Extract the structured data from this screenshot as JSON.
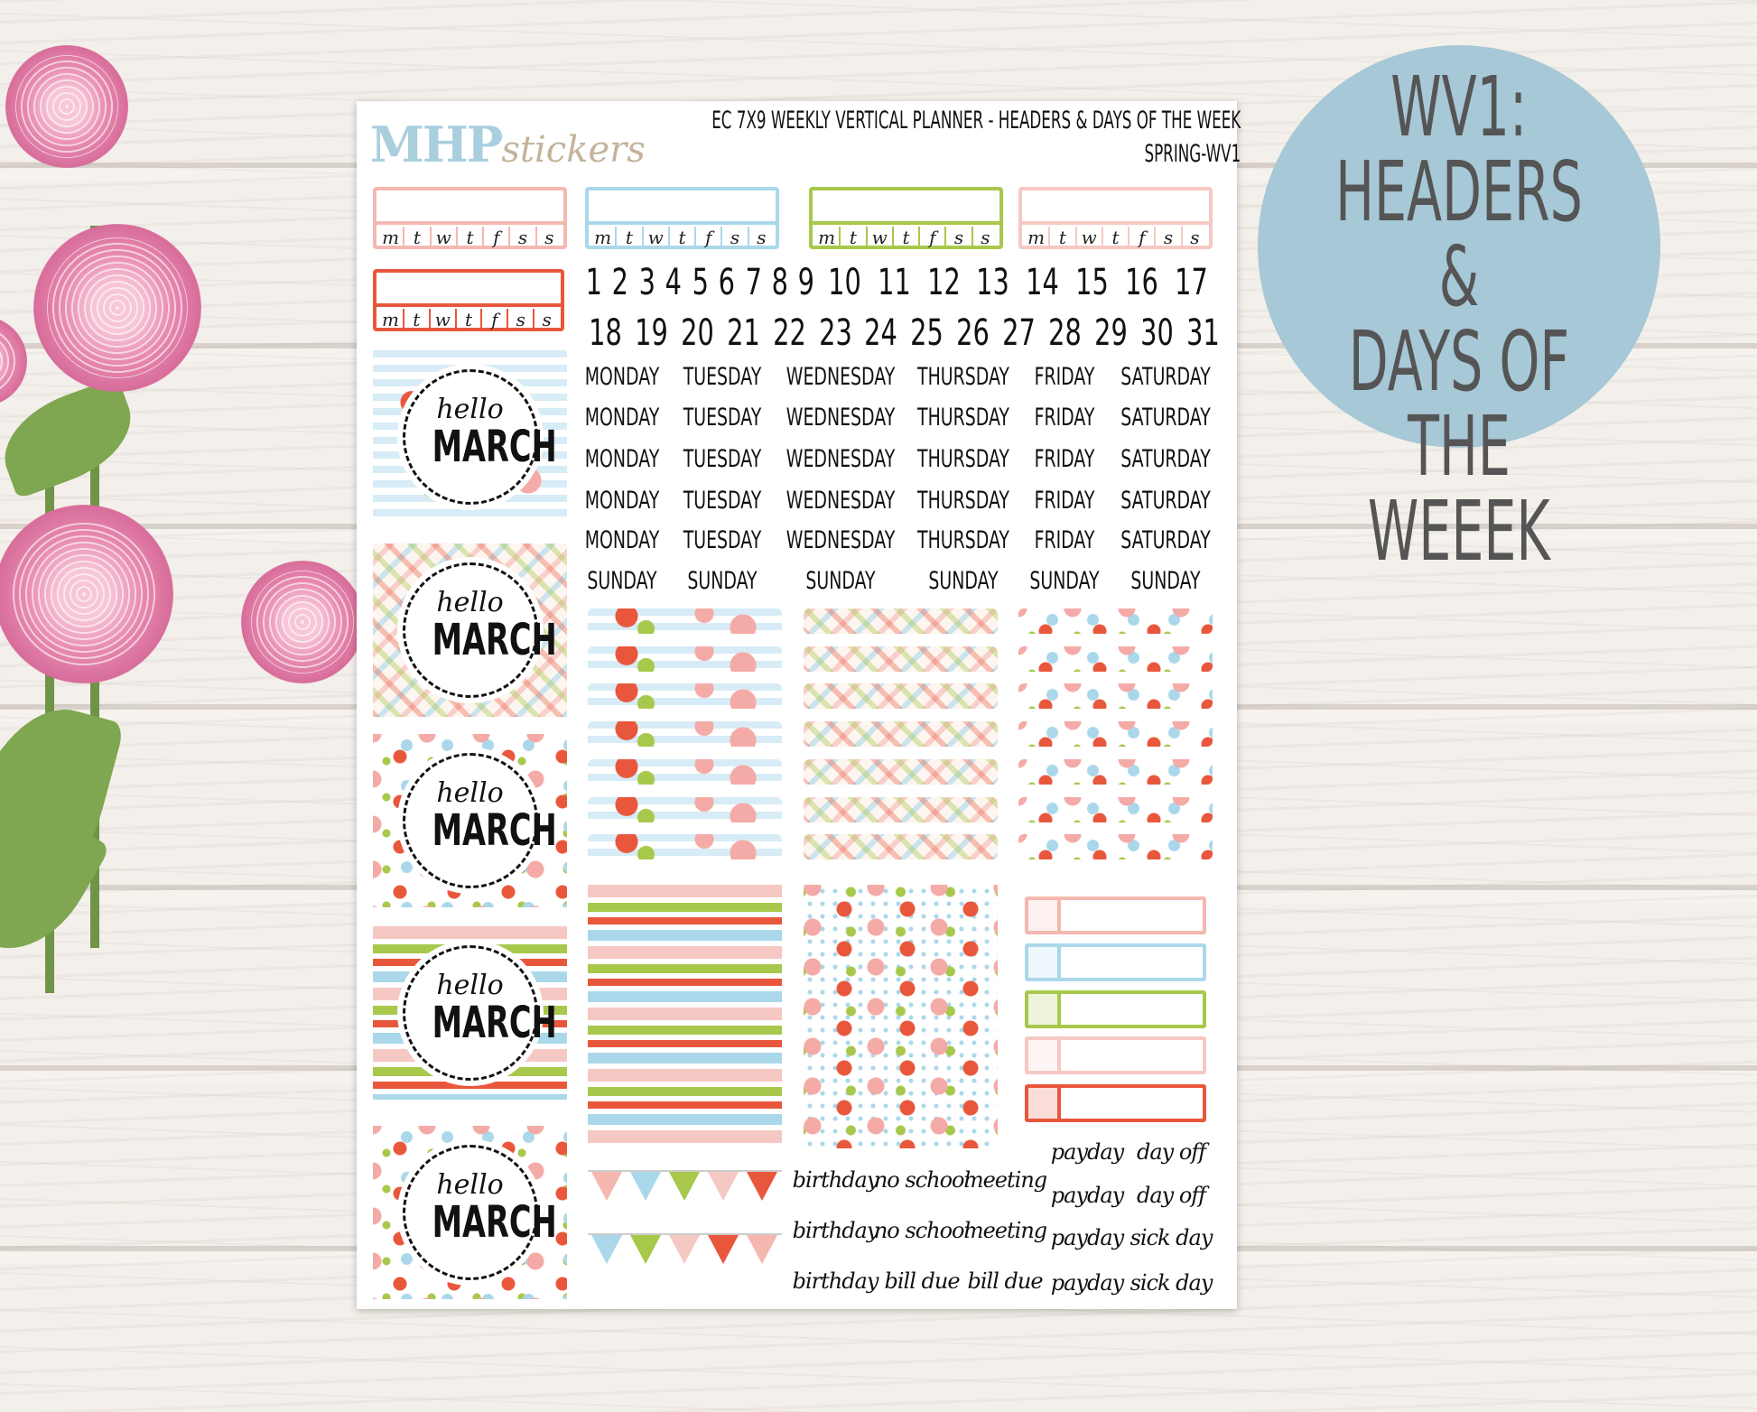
{
  "logo": {
    "brand": "MHP",
    "suffix": "stickers"
  },
  "header": {
    "line1": "EC 7X9 WEEKLY VERTICAL PLANNER - HEADERS & DAYS OF THE WEEK",
    "line2": "SPRING-WV1"
  },
  "badge": {
    "lines": [
      "WV1:",
      "HEADERS &",
      "DAYS OF THE",
      "WEEEK"
    ],
    "color": "#a7c8d6"
  },
  "colors": {
    "pink": "#f4b8b0",
    "blue": "#aad8ea",
    "green": "#a8c84c",
    "palepink": "#f6c8c4",
    "coral": "#e8573c"
  },
  "week_letters": [
    "m",
    "t",
    "w",
    "t",
    "f",
    "s",
    "s"
  ],
  "numbers_row1": [
    "1",
    "2",
    "3",
    "4",
    "5",
    "6",
    "7",
    "8",
    "9",
    "10",
    "11",
    "12",
    "13",
    "14",
    "15",
    "16",
    "17"
  ],
  "numbers_row2": [
    "18",
    "19",
    "20",
    "21",
    "22",
    "23",
    "24",
    "25",
    "26",
    "27",
    "28",
    "29",
    "30",
    "31"
  ],
  "weekdays": [
    "MONDAY",
    "TUESDAY",
    "WEDNESDAY",
    "THURSDAY",
    "FRIDAY",
    "SATURDAY"
  ],
  "sunday": "SUNDAY",
  "hello": {
    "top": "hello",
    "bottom": "MARCH"
  },
  "script_left": [
    [
      "birthday",
      "no school",
      "meeting"
    ],
    [
      "birthday",
      "no school",
      "meeting"
    ],
    [
      "birthday",
      "bill due",
      "bill due"
    ]
  ],
  "script_right": [
    [
      "payday",
      "day off"
    ],
    [
      "payday",
      "day off"
    ],
    [
      "payday",
      "sick day"
    ],
    [
      "payday",
      "sick day"
    ]
  ]
}
